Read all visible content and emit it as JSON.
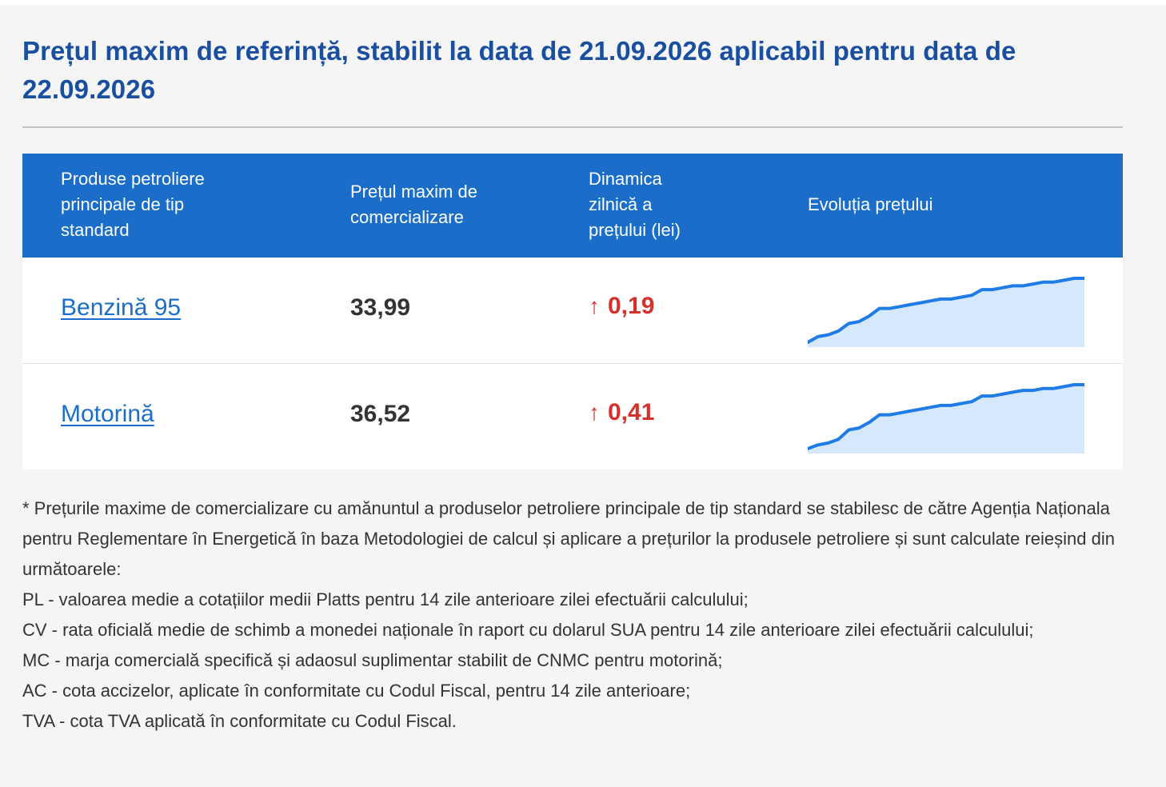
{
  "header": {
    "title": "Prețul maxim de referință, stabilit la data de 21.09.2026 aplicabil pentru data de 22.09.2026"
  },
  "table": {
    "columns": [
      "Produse petroliere principale de tip standard",
      "Prețul maxim de comercializare",
      "Dinamica zilnică a prețului (lei)",
      "Evoluția prețului"
    ],
    "rows": [
      {
        "product": "Benzină 95",
        "price": "33,99",
        "trend_icon": "arrow-up-icon",
        "change": "0,19"
      },
      {
        "product": "Motorină",
        "price": "36,52",
        "trend_icon": "arrow-up-icon",
        "change": "0,41"
      }
    ],
    "colors": {
      "header_bg": "#1a6ec9",
      "link": "#1a6ec9",
      "increase": "#d6302a",
      "spark_line": "#1f7be6",
      "spark_fill": "#d6e8fb"
    }
  },
  "notes": [
    "* Prețurile maxime de comercializare cu amănuntul a produselor petroliere principale de tip standard se stabilesc de către Agenția Naționala pentru Reglementare în Energetică în baza Metodologiei de calcul și aplicare a prețurilor la produsele petroliere și sunt calculate reieșind din următoarele:",
    "PL - valoarea medie a cotațiilor medii Platts pentru 14 zile anterioare zilei efectuării calculului;",
    "CV - rata oficială medie de schimb a monedei naționale în raport cu dolarul SUA pentru 14 zile anterioare zilei efectuării calculului;",
    "MC - marja comercială specifică și adaosul suplimentar stabilit de CNMC pentru motorină;",
    "AC - cota accizelor, aplicate în conformitate cu Codul Fiscal, pentru 14 zile anterioare;",
    "TVA - cota TVA aplicată în conformitate cu Codul Fiscal."
  ],
  "sparklines": [
    {
      "values": [
        0,
        3,
        4,
        6,
        10,
        11,
        14,
        18,
        18,
        19,
        20,
        21,
        22,
        23,
        23,
        24,
        25,
        28,
        28,
        29,
        30,
        30,
        31,
        32,
        32,
        33,
        34,
        34
      ]
    },
    {
      "values": [
        0,
        2,
        3,
        5,
        10,
        11,
        14,
        18,
        18,
        19,
        20,
        21,
        22,
        23,
        23,
        24,
        25,
        28,
        28,
        29,
        30,
        31,
        31,
        32,
        32,
        33,
        34,
        34
      ]
    }
  ]
}
